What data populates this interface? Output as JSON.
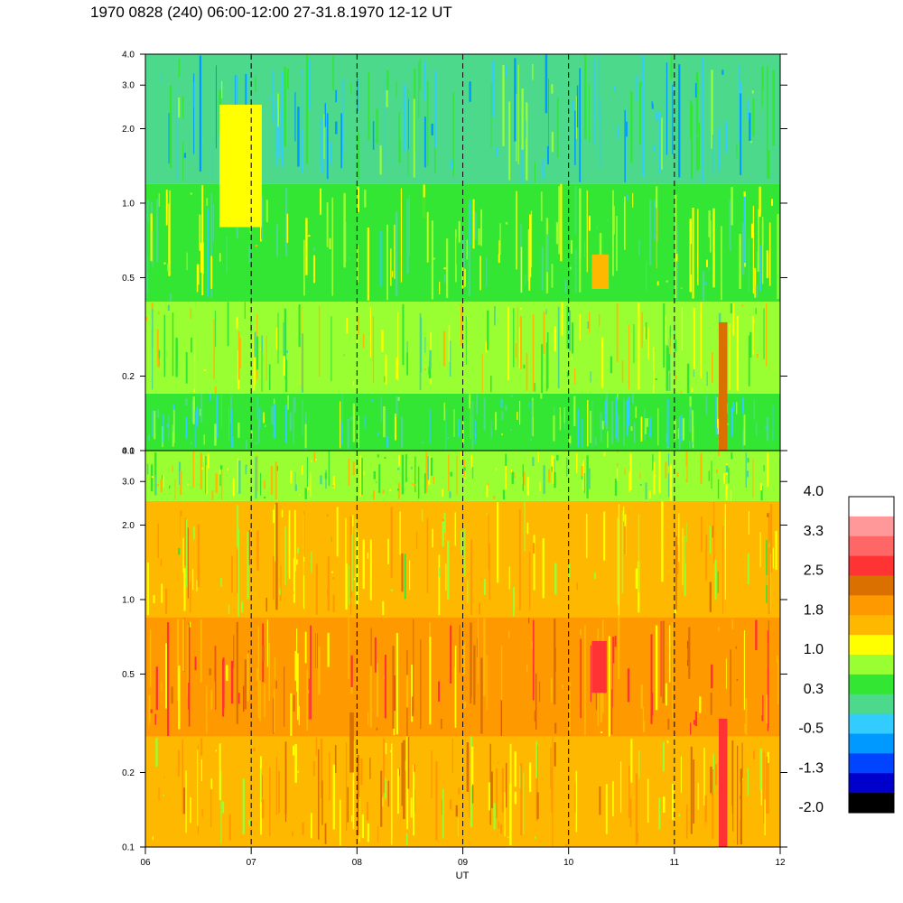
{
  "title": "1970 0828 (240) 06:00-12:00 27-31.8.1970  12-12 UT",
  "chart_data": {
    "type": "heatmap",
    "xlabel": "UT",
    "x_ticks": [
      "06",
      "07",
      "08",
      "09",
      "10",
      "11",
      "12"
    ],
    "x_range": [
      6,
      12
    ],
    "y_scale": "log",
    "y_range": [
      0.1,
      4.0
    ],
    "y_ticks": [
      "0.1",
      "0.2",
      "0.5",
      "1.0",
      "2.0",
      "3.0",
      "4.0"
    ],
    "y_tick_values": [
      0.1,
      0.2,
      0.5,
      1.0,
      2.0,
      3.0,
      4.0
    ],
    "dashed_hour_lines": [
      7,
      8,
      9,
      10,
      11
    ],
    "panels": [
      {
        "name": "upper",
        "y_bands": [
          {
            "from": 0.1,
            "to": 0.17,
            "dominant_level": 0.3
          },
          {
            "from": 0.17,
            "to": 0.4,
            "dominant_level": 0.9
          },
          {
            "from": 0.4,
            "to": 1.2,
            "dominant_level": 0.6
          },
          {
            "from": 1.2,
            "to": 4.0,
            "dominant_level": 0.0
          }
        ],
        "features": [
          {
            "description": "red streak",
            "x_from": 11.42,
            "x_to": 11.5,
            "y_from": 0.1,
            "y_to": 0.33,
            "level": 2.3
          },
          {
            "description": "orange patch",
            "x_from": 10.22,
            "x_to": 10.38,
            "y_from": 0.45,
            "y_to": 0.62,
            "level": 1.6
          },
          {
            "description": "orange patch",
            "x_from": 6.7,
            "x_to": 7.1,
            "y_from": 0.8,
            "y_to": 2.5,
            "level": 1.3
          }
        ]
      },
      {
        "name": "lower",
        "y_bands": [
          {
            "from": 0.1,
            "to": 0.28,
            "dominant_level": 1.6
          },
          {
            "from": 0.28,
            "to": 0.85,
            "dominant_level": 2.0
          },
          {
            "from": 0.85,
            "to": 2.5,
            "dominant_level": 1.4
          },
          {
            "from": 2.5,
            "to": 4.0,
            "dominant_level": 0.9
          }
        ],
        "features": [
          {
            "description": "red block",
            "x_from": 10.22,
            "x_to": 10.36,
            "y_from": 0.42,
            "y_to": 0.68,
            "level": 2.6
          },
          {
            "description": "red streak",
            "x_from": 11.42,
            "x_to": 11.5,
            "y_from": 0.1,
            "y_to": 0.33,
            "level": 2.6
          },
          {
            "description": "red streak",
            "x_from": 7.93,
            "x_to": 7.97,
            "y_from": 0.2,
            "y_to": 0.35,
            "level": 2.5
          }
        ]
      }
    ],
    "colorbar": {
      "labels": [
        "4.0",
        "3.3",
        "2.5",
        "1.8",
        "1.0",
        "0.3",
        "-0.5",
        "-1.3",
        "-2.0"
      ],
      "colors": [
        "#ffffff",
        "#ff9999",
        "#ff6666",
        "#ff3333",
        "#d97000",
        "#ff9900",
        "#ffb800",
        "#ffff00",
        "#99ff33",
        "#33e633",
        "#4dd98c",
        "#33ccff",
        "#0099ff",
        "#0044ff",
        "#0000cc",
        "#000000"
      ]
    }
  }
}
